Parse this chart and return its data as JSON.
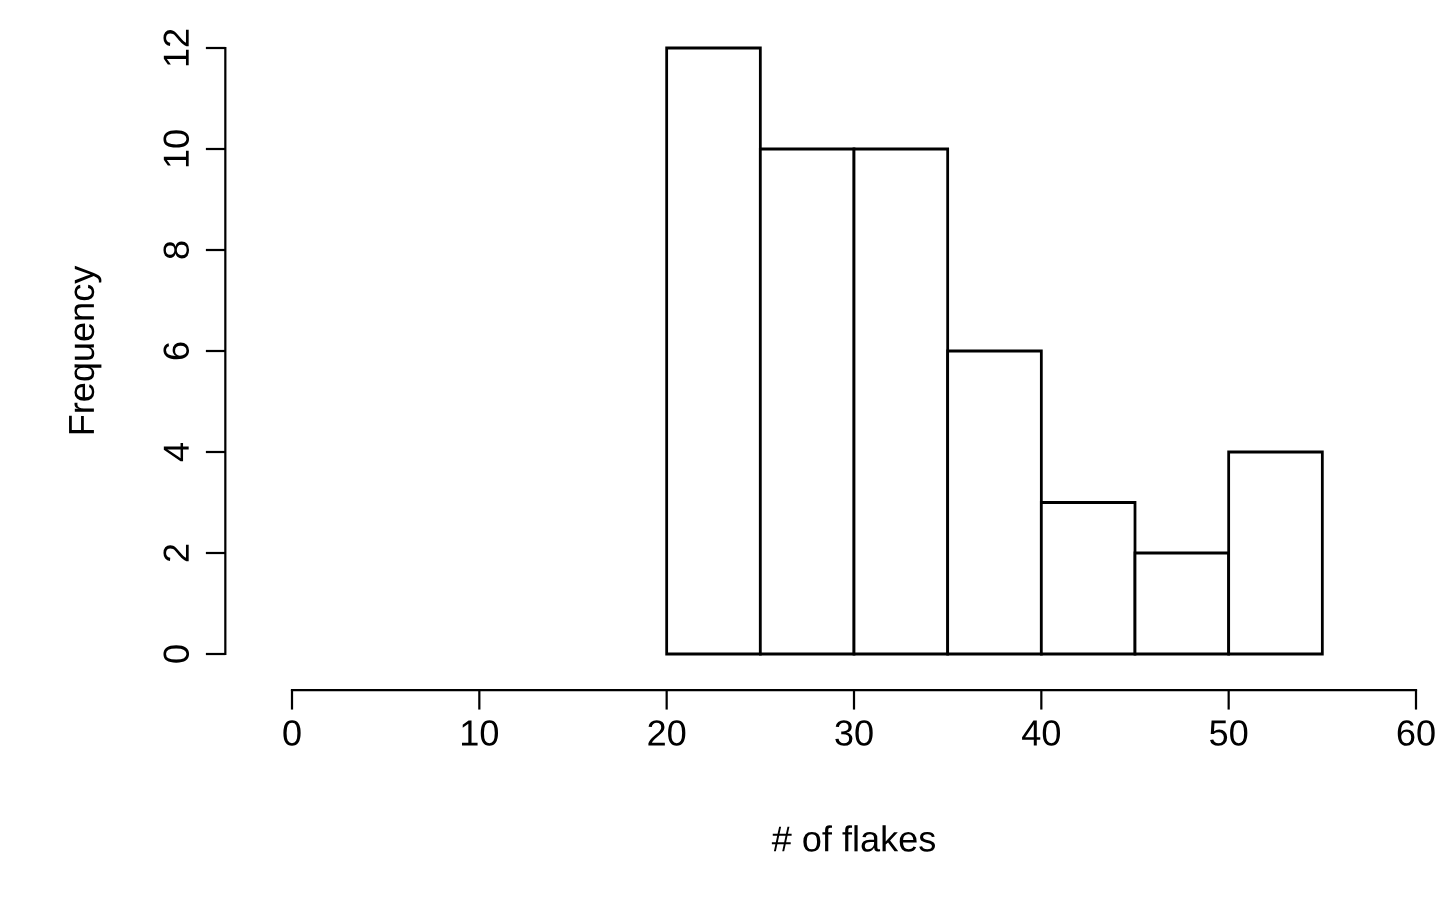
{
  "chart_data": {
    "type": "histogram",
    "xlabel": "# of flakes",
    "ylabel": "Frequency",
    "bins": [
      20,
      25,
      30,
      35,
      40,
      45,
      50,
      55
    ],
    "values": [
      12,
      10,
      10,
      6,
      3,
      2,
      4
    ],
    "color": "#ffffff",
    "xlim": [
      0,
      60
    ],
    "ylim": [
      0,
      12
    ],
    "xticks": [
      0,
      10,
      20,
      30,
      40,
      50,
      60
    ],
    "yticks": [
      0,
      2,
      4,
      6,
      8,
      10,
      12
    ],
    "grid": false
  }
}
